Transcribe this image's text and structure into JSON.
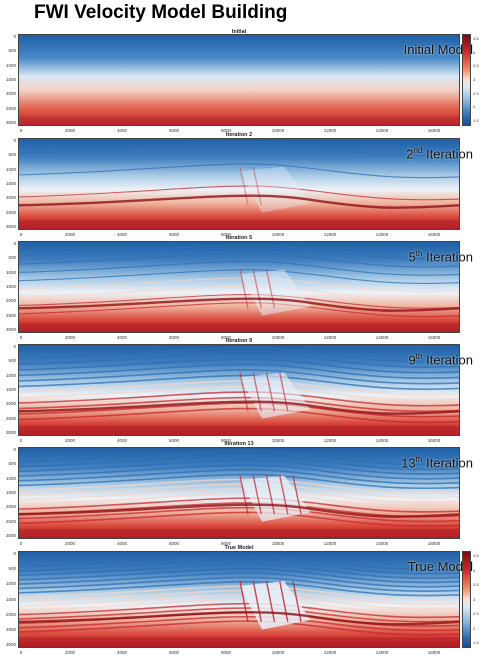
{
  "title": "FWI Velocity Model Building",
  "panels": [
    {
      "plot_title": "Initial",
      "overlay_base": "Initial Model",
      "overlay_sup": "",
      "overlay_tail": ""
    },
    {
      "plot_title": "Iteration 2",
      "overlay_base": "2",
      "overlay_sup": "nd",
      "overlay_tail": " Iteration"
    },
    {
      "plot_title": "Iteration 5",
      "overlay_base": "5",
      "overlay_sup": "th",
      "overlay_tail": " Iteration"
    },
    {
      "plot_title": "Iteration 9",
      "overlay_base": "9",
      "overlay_sup": "th",
      "overlay_tail": " Iteration"
    },
    {
      "plot_title": "Iteration 13",
      "overlay_base": "13",
      "overlay_sup": "th",
      "overlay_tail": " Iteration"
    },
    {
      "plot_title": "True Model",
      "overlay_base": "True Model",
      "overlay_sup": "",
      "overlay_tail": ""
    }
  ],
  "x_ticks": [
    "0",
    "2000",
    "4000",
    "6000",
    "8000",
    "10000",
    "12000",
    "14000",
    "16000"
  ],
  "y_ticks": [
    "0",
    "500",
    "1000",
    "1500",
    "2000",
    "2500",
    "3000"
  ],
  "colorbar_ticks": [
    "4.5",
    "4",
    "3.5",
    "3",
    "2.5",
    "2",
    "1.5"
  ],
  "colors": {
    "low": "#1a4f8c",
    "mid": "#f9e3d6",
    "high": "#7a0a12"
  }
}
